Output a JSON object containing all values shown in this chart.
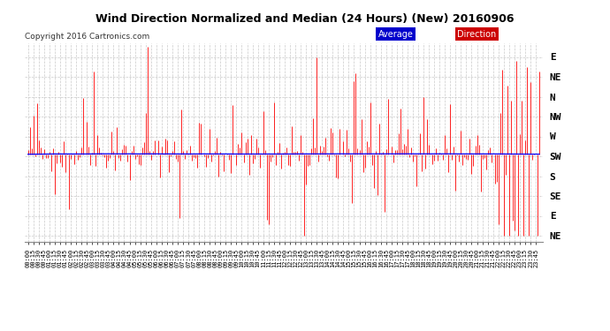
{
  "title": "Wind Direction Normalized and Median (24 Hours) (New) 20160906",
  "copyright": "Copyright 2016 Cartronics.com",
  "background_color": "#ffffff",
  "plot_bg_color": "#ffffff",
  "grid_color": "#bbbbbb",
  "red_color": "#ff0000",
  "blue_color": "#0000ff",
  "dark_color": "#333333",
  "ytick_labels": [
    "E",
    "NE",
    "N",
    "NW",
    "W",
    "SW",
    "S",
    "SE",
    "E",
    "NE"
  ],
  "ytick_values": [
    9,
    8,
    7,
    6,
    5,
    4,
    3,
    2,
    1,
    0
  ],
  "median_line_y": 4.1,
  "legend_avg_color": "#0000cc",
  "legend_dir_color": "#cc0000",
  "num_points": 288,
  "seed": 42
}
